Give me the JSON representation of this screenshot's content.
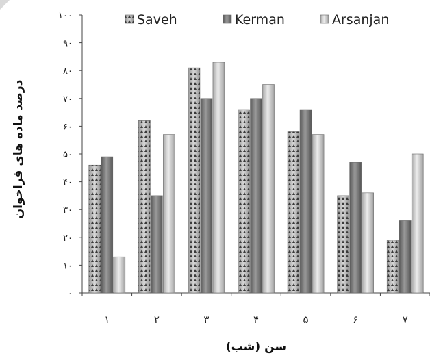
{
  "chart_data": {
    "type": "bar",
    "title": "",
    "xlabel": "سن (شب)",
    "ylabel": "درصد ماده های فراخوان",
    "categories": [
      "١",
      "٢",
      "٣",
      "۴",
      "۵",
      "۶",
      "٧"
    ],
    "yticks": [
      "٠",
      "١٠",
      "٢٠",
      "٣٠",
      "۴٠",
      "۵٠",
      "۶٠",
      "٧٠",
      "٨٠",
      "٩٠",
      "١٠٠"
    ],
    "ylim": [
      0,
      100
    ],
    "grid": false,
    "legend_position": "top",
    "series": [
      {
        "name": "Saveh",
        "color": "#b8b8b8",
        "values": [
          46,
          62,
          81,
          66,
          58,
          35,
          19
        ]
      },
      {
        "name": "Kerman",
        "color": "#7a7a7a",
        "values": [
          49,
          35,
          70,
          70,
          66,
          47,
          26
        ]
      },
      {
        "name": "Arsanjan",
        "color": "#cfcfcf",
        "values": [
          13,
          57,
          83,
          75,
          57,
          36,
          50
        ]
      }
    ]
  }
}
